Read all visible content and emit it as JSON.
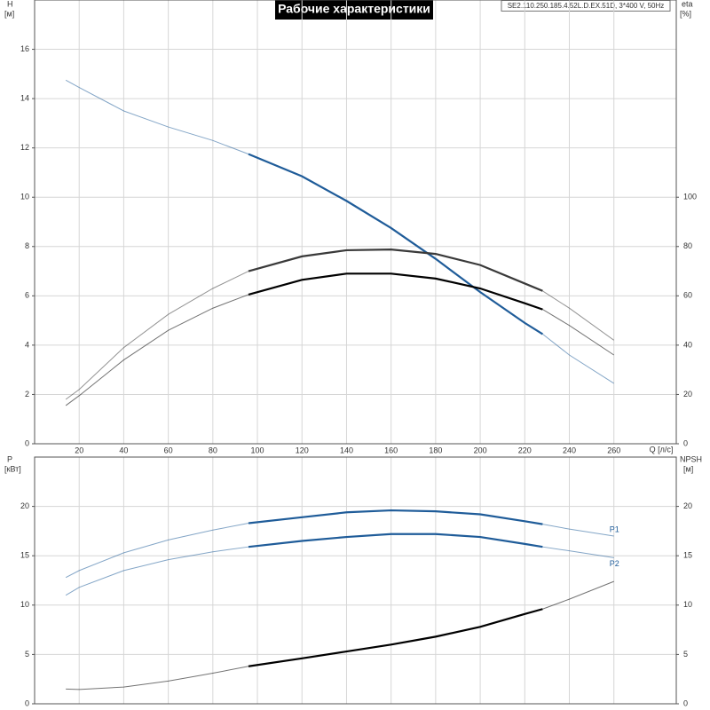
{
  "chart_data": [
    {
      "type": "line",
      "title": "Рабочие характеристики",
      "subtitle": "SE2.110.250.185.4.52L.D.EX.51D, 3*400 V, 50Hz",
      "x_label": "Q [л/с]",
      "y_label": "H",
      "y_unit": "[м]",
      "y2_label": "eta",
      "y2_unit": "[%]",
      "duty_range": [
        96,
        228
      ],
      "grid": true,
      "x": [
        14,
        20,
        40,
        60,
        80,
        96,
        120,
        140,
        160,
        180,
        200,
        220,
        228,
        240,
        260
      ],
      "xlim": [
        0,
        288
      ],
      "xticks": [
        20,
        40,
        60,
        80,
        100,
        120,
        140,
        160,
        180,
        200,
        220,
        240,
        260
      ],
      "ylim": [
        0,
        18
      ],
      "yticks": [
        0,
        2,
        4,
        6,
        8,
        10,
        12,
        14,
        16
      ],
      "y2lim": [
        0,
        180
      ],
      "y2ticks": [
        0,
        20,
        40,
        60,
        80,
        100
      ],
      "series": [
        {
          "color": "#1f5c99",
          "values": [
            14.75,
            14.45,
            13.5,
            12.85,
            12.3,
            11.75,
            10.85,
            9.85,
            8.75,
            7.5,
            6.15,
            4.9,
            4.45,
            3.6,
            2.45
          ]
        },
        {
          "color": "#3a3a3a",
          "axis": "y2",
          "values": [
            18,
            22,
            39,
            52.5,
            63,
            70,
            76,
            78.5,
            78.8,
            77,
            72.5,
            65,
            62,
            55,
            42
          ]
        },
        {
          "color": "#000000",
          "axis": "y2",
          "values": [
            15.5,
            19.5,
            34,
            46,
            55,
            60.5,
            66.5,
            69,
            69,
            67,
            63,
            57,
            54.5,
            48,
            36
          ]
        }
      ]
    },
    {
      "type": "line",
      "y_label": "P",
      "y_unit": "[кВт]",
      "y2_label": "NPSH",
      "y2_unit": "[м]",
      "duty_range": [
        96,
        228
      ],
      "grid": true,
      "x": [
        14,
        20,
        40,
        60,
        80,
        96,
        120,
        140,
        160,
        180,
        200,
        220,
        228,
        240,
        260
      ],
      "xlim": [
        0,
        288
      ],
      "ylim": [
        0,
        25
      ],
      "yticks": [
        0,
        5,
        10,
        15,
        20
      ],
      "y2lim": [
        0,
        25
      ],
      "y2ticks": [
        0,
        5,
        10,
        15,
        20
      ],
      "series": [
        {
          "name": "P1",
          "color": "#1f5c99",
          "values": [
            12.8,
            13.5,
            15.3,
            16.6,
            17.6,
            18.3,
            18.9,
            19.4,
            19.6,
            19.5,
            19.2,
            18.5,
            18.2,
            17.7,
            17.0
          ]
        },
        {
          "name": "P2",
          "color": "#1f5c99",
          "values": [
            11.0,
            11.8,
            13.5,
            14.6,
            15.4,
            15.9,
            16.5,
            16.9,
            17.2,
            17.2,
            16.9,
            16.2,
            15.9,
            15.5,
            14.8
          ]
        },
        {
          "color": "#000000",
          "axis": "y2",
          "values": [
            1.5,
            1.45,
            1.7,
            2.3,
            3.1,
            3.8,
            4.6,
            5.3,
            6.0,
            6.8,
            7.8,
            9.1,
            9.6,
            10.6,
            12.4
          ]
        }
      ]
    }
  ]
}
